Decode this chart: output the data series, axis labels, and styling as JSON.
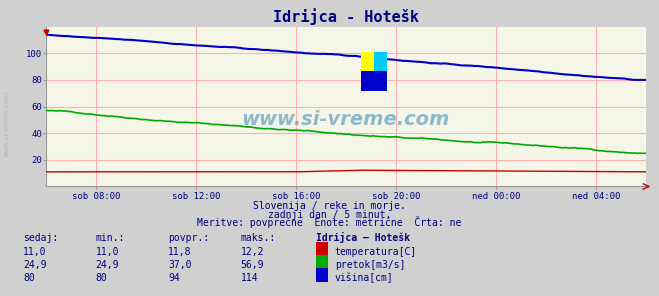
{
  "title": "Idrijca - Hotešk",
  "bg_color": "#d0d0d0",
  "plot_bg_color": "#f5f5e8",
  "grid_color": "#ffb0b0",
  "text_color": "#000080",
  "title_color": "#000080",
  "x_tick_labels": [
    "sob 08:00",
    "sob 12:00",
    "sob 16:00",
    "sob 20:00",
    "ned 00:00",
    "ned 04:00"
  ],
  "x_tick_positions": [
    0.083,
    0.25,
    0.417,
    0.583,
    0.75,
    0.917
  ],
  "ylim": [
    0,
    120
  ],
  "yticks": [
    20,
    40,
    60,
    80,
    100
  ],
  "subtitle1": "Slovenija / reke in morje.",
  "subtitle2": "zadnji dan / 5 minut.",
  "subtitle3": "Meritve: povprečne  Enote: metrične  Črta: ne",
  "table_header": [
    "sedaj:",
    "min.:",
    "povpr.:",
    "maks.:",
    "Idrijca – Hotešk"
  ],
  "table_rows": [
    [
      "11,0",
      "11,0",
      "11,8",
      "12,2",
      "temperatura[C]",
      "#cc0000"
    ],
    [
      "24,9",
      "24,9",
      "37,0",
      "56,9",
      "pretok[m3/s]",
      "#00aa00"
    ],
    [
      "80",
      "80",
      "94",
      "114",
      "višina[cm]",
      "#0000cc"
    ]
  ],
  "temp_color": "#cc0000",
  "flow_color": "#00aa00",
  "height_color": "#0000cc",
  "watermark": "www.si-vreme.com",
  "watermark_color": "#5599bb",
  "logo_yellow": "#ffff00",
  "logo_cyan": "#00ccff",
  "logo_blue": "#0000cc"
}
